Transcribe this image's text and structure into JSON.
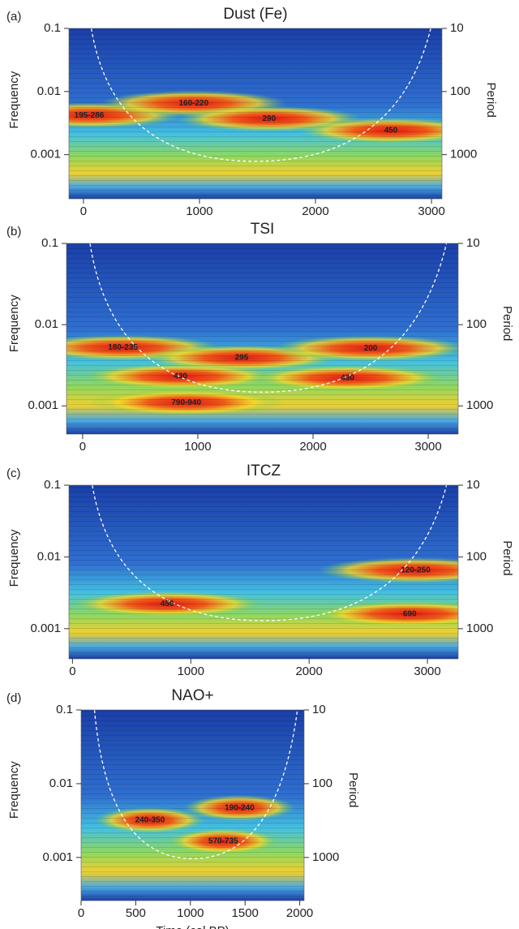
{
  "chart_data": [
    {
      "type": "wavelet",
      "panel": "(a)",
      "title": "Dust (Fe)",
      "ylabel": "Frequency",
      "y2label": "Period",
      "log_y": true,
      "xlim": [
        -125,
        3090
      ],
      "xticks": [
        0,
        1000,
        2000,
        3000
      ],
      "ylim": [
        0.1,
        0.0002
      ],
      "yticks": [
        0.1,
        0.01,
        0.001
      ],
      "y2lim": [
        10,
        5000
      ],
      "y2ticks": [
        10,
        100,
        1000
      ],
      "annotations": [
        {
          "text": "195-286",
          "x": 50,
          "y": 0.0042
        },
        {
          "text": "160-220",
          "x": 950,
          "y": 0.0065
        },
        {
          "text": "290",
          "x": 1600,
          "y": 0.0037
        },
        {
          "text": "450",
          "x": 2650,
          "y": 0.0024
        }
      ]
    },
    {
      "type": "wavelet",
      "panel": "(b)",
      "title": "TSI",
      "ylabel": "Frequency",
      "y2label": "Period",
      "log_y": true,
      "xlim": [
        -140,
        3260
      ],
      "xticks": [
        0,
        1000,
        2000,
        3000
      ],
      "ylim": [
        0.1,
        0.00045
      ],
      "yticks": [
        0.1,
        0.01,
        0.001
      ],
      "y2lim": [
        10,
        2222
      ],
      "y2ticks": [
        10,
        100,
        1000
      ],
      "annotations": [
        {
          "text": "180-235",
          "x": 350,
          "y": 0.0052
        },
        {
          "text": "295",
          "x": 1380,
          "y": 0.0039
        },
        {
          "text": "200",
          "x": 2500,
          "y": 0.0051
        },
        {
          "text": "430",
          "x": 850,
          "y": 0.0023
        },
        {
          "text": "430",
          "x": 2300,
          "y": 0.0022
        },
        {
          "text": "790-940",
          "x": 900,
          "y": 0.0011
        }
      ]
    },
    {
      "type": "wavelet",
      "panel": "(c)",
      "title": "ITCZ",
      "ylabel": "Frequency",
      "y2label": "Period",
      "log_y": true,
      "xlim": [
        -30,
        3260
      ],
      "xticks": [
        0,
        1000,
        2000,
        3000
      ],
      "ylim": [
        0.1,
        0.00038
      ],
      "yticks": [
        0.1,
        0.01,
        0.001
      ],
      "y2lim": [
        10,
        2632
      ],
      "y2ticks": [
        10,
        100,
        1000
      ],
      "annotations": [
        {
          "text": "120-250",
          "x": 2900,
          "y": 0.0065
        },
        {
          "text": "450",
          "x": 800,
          "y": 0.0022
        },
        {
          "text": "690",
          "x": 2850,
          "y": 0.0016
        }
      ]
    },
    {
      "type": "wavelet",
      "panel": "(d)",
      "title": "NAO+",
      "ylabel": "Frequency",
      "y2label": "Period",
      "xlabel": "Time (cal BP)",
      "log_y": true,
      "xlim": [
        0,
        2040
      ],
      "xticks": [
        0,
        500,
        1000,
        1500,
        2000
      ],
      "ylim": [
        0.1,
        0.00026
      ],
      "yticks": [
        0.1,
        0.01,
        0.001
      ],
      "y2lim": [
        10,
        3846
      ],
      "y2ticks": [
        10,
        100,
        1000
      ],
      "annotations": [
        {
          "text": "190-240",
          "x": 1450,
          "y": 0.0047
        },
        {
          "text": "240-350",
          "x": 630,
          "y": 0.0032
        },
        {
          "text": "570-735",
          "x": 1300,
          "y": 0.00165
        }
      ]
    }
  ]
}
